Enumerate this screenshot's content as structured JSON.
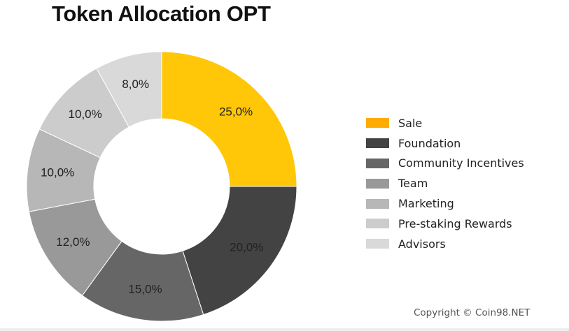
{
  "chart_data": {
    "type": "pie",
    "variant": "donut",
    "title": "Token Allocation OPT",
    "categories": [
      "Sale",
      "Foundation",
      "Community Incentives",
      "Team",
      "Marketing",
      "Pre-staking Rewards",
      "Advisors"
    ],
    "values": [
      25.0,
      20.0,
      15.0,
      12.0,
      10.0,
      10.0,
      8.0
    ],
    "data_labels": [
      "25,0%",
      "20,0%",
      "15,0%",
      "12,0%",
      "10,0%",
      "10,0%",
      "8,0%"
    ],
    "colors": [
      "#ffc708",
      "#434343",
      "#666666",
      "#999999",
      "#b7b7b7",
      "#cccccc",
      "#d9d9d9"
    ],
    "legend_colors": [
      "#ffab00",
      "#434343",
      "#666666",
      "#999999",
      "#b7b7b7",
      "#cccccc",
      "#d9d9d9"
    ],
    "legend_position": "right",
    "start_angle": "12 o'clock",
    "direction": "clockwise"
  },
  "footer": {
    "copyright": "Copyright © Coin98.NET"
  }
}
